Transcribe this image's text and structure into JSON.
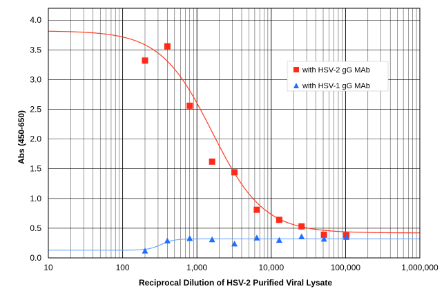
{
  "chart_data": {
    "type": "scatter",
    "xlabel": "Reciprocal Dilution of HSV-2 Purified Viral Lysate",
    "ylabel": "Abs (450-650)",
    "xscale": "log",
    "xlim": [
      10,
      1000000
    ],
    "ylim": [
      0,
      4.2
    ],
    "x_ticks": [
      10,
      100,
      1000,
      10000,
      100000,
      1000000
    ],
    "x_tick_labels": [
      "10",
      "100",
      "1,000",
      "10,000",
      "100,000",
      "1,000,000"
    ],
    "y_ticks": [
      0,
      0.5,
      1,
      1.5,
      2,
      2.5,
      3,
      3.5,
      4
    ],
    "y_tick_labels": [
      "0.0",
      "0.5",
      "1.0",
      "1.5",
      "2.0",
      "2.5",
      "3.0",
      "3.5",
      "4.0"
    ],
    "grid": true,
    "legend_position": "right",
    "series": [
      {
        "name": "with HSV-2 gG MAb",
        "marker": "square",
        "color": "#ff2a1a",
        "line_color": "#ff3a1f",
        "x": [
          200,
          400,
          800,
          1600,
          3200,
          6400,
          12800,
          25600,
          51200,
          102400
        ],
        "y": [
          3.32,
          3.56,
          2.56,
          1.62,
          1.44,
          0.81,
          0.64,
          0.53,
          0.39,
          0.38
        ],
        "fit": {
          "top": 3.82,
          "bottom": 0.42,
          "ec50": 1600,
          "hill": 1.25
        }
      },
      {
        "name": "with HSV-1 gG MAb",
        "marker": "triangle",
        "color": "#1f6fff",
        "line_color": "#6aa8ff",
        "x": [
          200,
          400,
          800,
          1600,
          3200,
          6400,
          12800,
          25600,
          51200,
          102400
        ],
        "y": [
          0.12,
          0.29,
          0.33,
          0.31,
          0.24,
          0.34,
          0.3,
          0.36,
          0.32,
          0.35
        ],
        "fit": {
          "bottom": 0.13,
          "top": 0.32,
          "ec50": 330,
          "hill": 5
        }
      }
    ]
  }
}
